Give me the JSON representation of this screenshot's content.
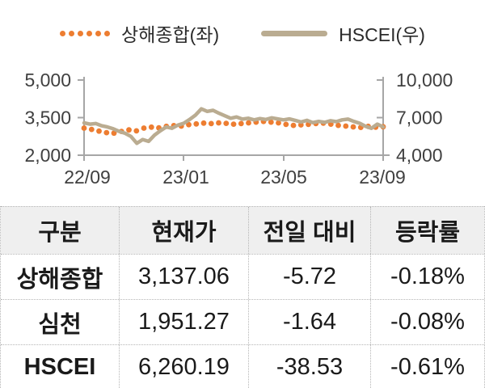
{
  "legend": {
    "series1": {
      "label": "상해종합(좌)",
      "style": "dotted"
    },
    "series2": {
      "label": "HSCEI(우)",
      "style": "solid"
    }
  },
  "chart_data": {
    "type": "line",
    "title": "",
    "x_range": [
      "22/09",
      "23/09"
    ],
    "x_ticks": [
      "22/09",
      "23/01",
      "23/05",
      "23/09"
    ],
    "left_axis": {
      "ticks": [
        "5,000",
        "3,500",
        "2,000"
      ],
      "min": 2000,
      "max": 5000
    },
    "right_axis": {
      "ticks": [
        "10,000",
        "7,000",
        "4,000"
      ],
      "min": 4000,
      "max": 10000
    },
    "grid": "off",
    "legend_position": "top-center",
    "series": [
      {
        "name": "상해종합",
        "axis": "left",
        "type": "dots",
        "color": "#ED7D31",
        "values": [
          3080,
          3030,
          2960,
          2900,
          2880,
          2950,
          3010,
          2970,
          3080,
          3120,
          3090,
          3150,
          3180,
          3160,
          3220,
          3250,
          3280,
          3260,
          3290,
          3270,
          3240,
          3260,
          3290,
          3320,
          3350,
          3320,
          3290,
          3230,
          3190,
          3210,
          3230,
          3260,
          3280,
          3240,
          3190,
          3160,
          3130,
          3110,
          3150,
          3120,
          3137
        ]
      },
      {
        "name": "HSCEI",
        "axis": "right",
        "type": "line",
        "color": "#BAAC91",
        "values": [
          6580,
          6480,
          6530,
          6350,
          6250,
          6100,
          5900,
          5750,
          5500,
          4950,
          5250,
          5100,
          5600,
          5950,
          6250,
          6150,
          6400,
          6550,
          6850,
          7200,
          7700,
          7500,
          7580,
          7350,
          7150,
          6950,
          7050,
          6880,
          6950,
          6820,
          6920,
          6850,
          6980,
          6900,
          6820,
          6900,
          6780,
          6650,
          6780,
          6600,
          6700,
          6620,
          6750,
          6680,
          6820,
          6880,
          6700,
          6550,
          6300,
          6150,
          6480,
          6260
        ]
      }
    ]
  },
  "table": {
    "headers": [
      "구분",
      "현재가",
      "전일 대비",
      "등락률"
    ],
    "rows": [
      {
        "name": "상해종합",
        "price": "3,137.06",
        "change": "-5.72",
        "rate": "-0.18%"
      },
      {
        "name": "심천",
        "price": "1,951.27",
        "change": "-1.64",
        "rate": "-0.08%"
      },
      {
        "name": "HSCEI",
        "price": "6,260.19",
        "change": "-38.53",
        "rate": "-0.61%"
      }
    ]
  },
  "colors": {
    "orange": "#ED7D31",
    "tan": "#BAAC91",
    "axis_line": "#A6A6A6",
    "axis_label": "#404040",
    "table_border": "#B5B5B5",
    "header_bg": "#EFEFEF",
    "text": "#1A1A1A"
  }
}
